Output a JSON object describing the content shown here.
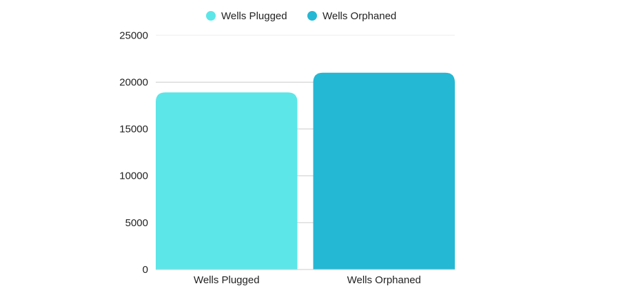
{
  "chart_data": {
    "type": "bar",
    "categories": [
      "Wells Plugged",
      "Wells Orphaned"
    ],
    "series": [
      {
        "name": "Wells Plugged",
        "values": [
          18900,
          null
        ]
      },
      {
        "name": "Wells Orphaned",
        "values": [
          null,
          21000
        ]
      }
    ],
    "values": [
      18900,
      21000
    ],
    "colors": [
      "#5de6e8",
      "#24b8d4"
    ],
    "title": "",
    "xlabel": "",
    "ylabel": "",
    "ylim": [
      0,
      25000
    ],
    "yticks": [
      0,
      5000,
      10000,
      15000,
      20000,
      25000
    ],
    "grid": true,
    "legend": "top-center"
  }
}
